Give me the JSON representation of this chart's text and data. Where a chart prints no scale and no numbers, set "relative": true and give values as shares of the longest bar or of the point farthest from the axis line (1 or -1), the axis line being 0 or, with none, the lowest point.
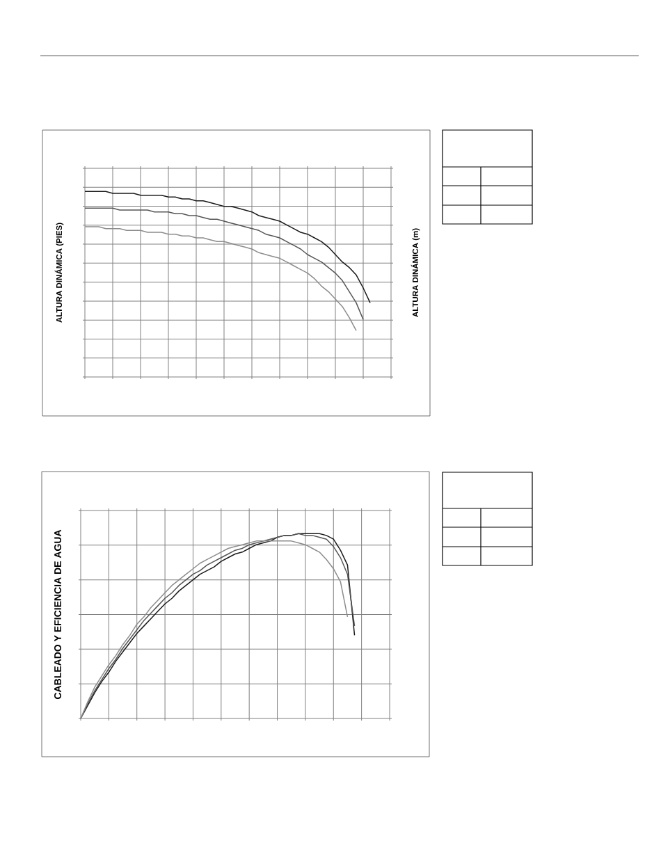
{
  "chart_data": [
    {
      "type": "line",
      "ylabel": "ALTURA DINÁMICA (PIES)",
      "y2label": "ALTURA DINÁMICA (m)",
      "relative": true,
      "grid": true,
      "categories": [
        null,
        null,
        null,
        null,
        null,
        null,
        null,
        null,
        null,
        null,
        null,
        null,
        null,
        null,
        null,
        null,
        null,
        null,
        null,
        null,
        null,
        null,
        null,
        null,
        null,
        null,
        null,
        null,
        null,
        null,
        null,
        null,
        null,
        null,
        null,
        null,
        null,
        null,
        null,
        null,
        null,
        null,
        null,
        null,
        null
      ],
      "series": [
        {
          "color": "#1a1a1a",
          "values": [
            1.0,
            1.0,
            1.0,
            1.0,
            0.99,
            0.99,
            0.99,
            0.99,
            0.98,
            0.98,
            0.98,
            0.98,
            0.97,
            0.97,
            0.96,
            0.96,
            0.95,
            0.95,
            0.94,
            0.93,
            0.92,
            0.92,
            0.91,
            0.9,
            0.89,
            0.87,
            0.86,
            0.85,
            0.84,
            0.82,
            0.8,
            0.78,
            0.77,
            0.75,
            0.73,
            0.7,
            0.66,
            0.62,
            0.59,
            0.55,
            0.48,
            0.4,
            null,
            null,
            null
          ]
        },
        {
          "color": "#555555",
          "values": [
            0.91,
            0.91,
            0.91,
            0.91,
            0.91,
            0.9,
            0.9,
            0.9,
            0.9,
            0.9,
            0.89,
            0.89,
            0.89,
            0.88,
            0.88,
            0.87,
            0.87,
            0.86,
            0.85,
            0.85,
            0.84,
            0.83,
            0.82,
            0.81,
            0.8,
            0.79,
            0.77,
            0.76,
            0.75,
            0.73,
            0.71,
            0.69,
            0.66,
            0.64,
            0.62,
            0.59,
            0.56,
            0.52,
            0.46,
            0.4,
            0.31,
            null,
            null,
            null,
            null
          ]
        },
        {
          "color": "#8c8c8c",
          "values": [
            0.81,
            0.81,
            0.81,
            0.8,
            0.8,
            0.8,
            0.79,
            0.79,
            0.79,
            0.78,
            0.78,
            0.78,
            0.77,
            0.77,
            0.76,
            0.76,
            0.75,
            0.75,
            0.74,
            0.73,
            0.73,
            0.72,
            0.71,
            0.7,
            0.69,
            0.67,
            0.66,
            0.65,
            0.64,
            0.62,
            0.6,
            0.58,
            0.56,
            0.53,
            0.49,
            0.46,
            0.42,
            0.38,
            0.32,
            0.25,
            null,
            null,
            null,
            null,
            null
          ]
        }
      ]
    },
    {
      "type": "line",
      "ylabel": "CABLEADO Y EFICIENCIA DE AGUA",
      "relative": true,
      "grid": true,
      "categories": [
        null,
        null,
        null,
        null,
        null,
        null,
        null,
        null,
        null,
        null,
        null,
        null,
        null,
        null,
        null,
        null,
        null,
        null,
        null,
        null,
        null,
        null,
        null,
        null,
        null,
        null,
        null,
        null,
        null,
        null,
        null,
        null,
        null,
        null,
        null,
        null,
        null,
        null,
        null,
        null,
        null,
        null,
        null,
        null,
        null
      ],
      "series": [
        {
          "color": "#1a1a1a",
          "values": [
            0,
            0.07,
            0.14,
            0.2,
            0.25,
            0.31,
            0.36,
            0.41,
            0.46,
            0.5,
            0.54,
            0.58,
            0.62,
            0.65,
            0.69,
            0.72,
            0.75,
            0.78,
            0.8,
            0.82,
            0.85,
            0.87,
            0.89,
            0.9,
            0.92,
            0.94,
            0.95,
            0.96,
            0.98,
            0.99,
            0.99,
            1.0,
            1.0,
            1.0,
            1.0,
            0.99,
            0.97,
            0.91,
            0.83,
            0.45,
            null,
            null,
            null,
            null,
            null
          ]
        },
        {
          "color": "#555555",
          "values": [
            0,
            0.08,
            0.15,
            0.21,
            0.27,
            0.32,
            0.38,
            0.43,
            0.48,
            0.53,
            0.57,
            0.61,
            0.65,
            0.68,
            0.72,
            0.75,
            0.78,
            0.8,
            0.83,
            0.85,
            0.87,
            0.89,
            0.91,
            0.92,
            0.94,
            0.95,
            0.96,
            0.97,
            0.98,
            0.99,
            0.99,
            1.0,
            0.99,
            0.99,
            0.98,
            0.97,
            0.93,
            0.87,
            0.78,
            0.5,
            null,
            null,
            null,
            null,
            null
          ]
        },
        {
          "color": "#8c8c8c",
          "values": [
            0,
            0.09,
            0.17,
            0.23,
            0.29,
            0.34,
            0.4,
            0.45,
            0.51,
            0.55,
            0.6,
            0.64,
            0.68,
            0.72,
            0.75,
            0.78,
            0.81,
            0.84,
            0.86,
            0.88,
            0.9,
            0.92,
            0.93,
            0.94,
            0.95,
            0.96,
            0.96,
            0.96,
            0.96,
            0.96,
            0.96,
            0.95,
            0.94,
            0.92,
            0.9,
            0.86,
            0.81,
            0.74,
            0.55,
            null,
            null,
            null,
            null,
            null,
            null
          ]
        }
      ]
    }
  ]
}
